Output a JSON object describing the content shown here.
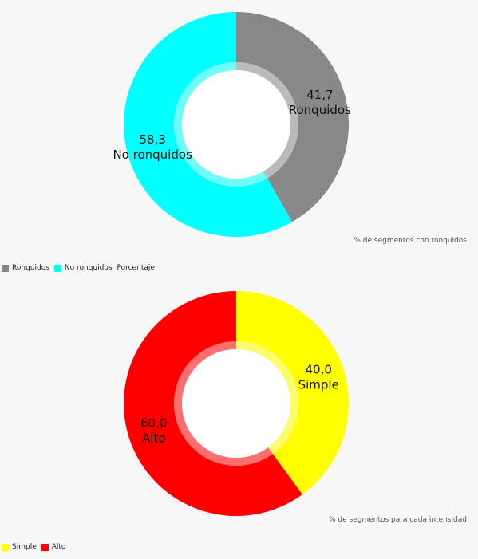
{
  "chart_data": [
    {
      "type": "pie",
      "donut": true,
      "description": "% de segmentos con ronquidos",
      "legend_note": "Porcentaje",
      "legend_position": "bottom-left",
      "categories": [
        "Ronquidos",
        "No ronquidos"
      ],
      "values": [
        41.7,
        58.3
      ],
      "value_labels": [
        "41,7",
        "58,3"
      ],
      "colors": [
        "#888888",
        "#00ffff"
      ]
    },
    {
      "type": "pie",
      "donut": true,
      "description": "% de segmentos para cada intensidad",
      "legend_position": "bottom-left",
      "categories": [
        "Simple",
        "Alto"
      ],
      "values": [
        40.0,
        60.0
      ],
      "value_labels": [
        "40,0",
        "60,0"
      ],
      "colors": [
        "#ffff00",
        "#ff0000"
      ]
    }
  ]
}
